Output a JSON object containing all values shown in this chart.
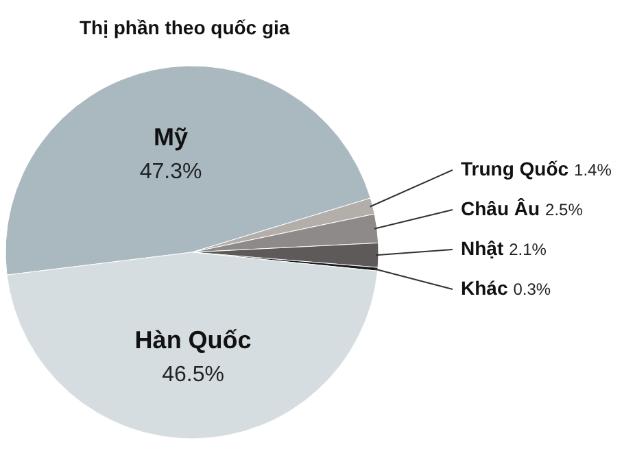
{
  "chart_data": {
    "type": "pie",
    "title": "Thị phần theo quốc gia",
    "categories": [
      "Mỹ",
      "Trung Quốc",
      "Châu Âu",
      "Nhật",
      "Khác",
      "Hàn Quốc"
    ],
    "values": [
      47.3,
      1.4,
      2.5,
      2.1,
      0.3,
      46.5
    ],
    "value_labels": [
      "47.3%",
      "1.4%",
      "2.5%",
      "2.1%",
      "0.3%",
      "46.5%"
    ],
    "colors": [
      "#a9b9bf",
      "#b3aeaa",
      "#8e8a8a",
      "#5e5a5a",
      "#1a1a1a",
      "#d5dde0"
    ]
  }
}
